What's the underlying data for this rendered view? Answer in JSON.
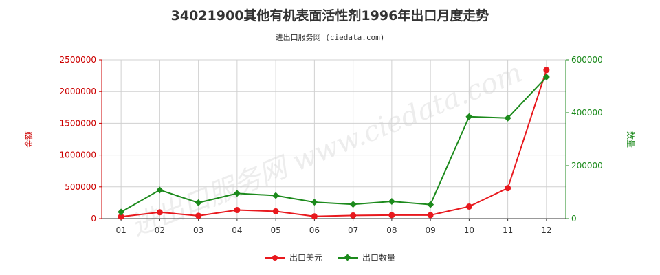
{
  "title": "34021900其他有机表面活性剂1996年出口月度走势",
  "subtitle": "进出口服务网 (ciedata.com)",
  "watermark": "进出口服务网 www.ciedata.com",
  "chart_data": {
    "type": "line",
    "categories": [
      "01",
      "02",
      "03",
      "04",
      "05",
      "06",
      "07",
      "08",
      "09",
      "10",
      "11",
      "12"
    ],
    "series": [
      {
        "name": "出口美元",
        "axis": "left",
        "color": "#e8191e",
        "marker": "circle",
        "values": [
          30000,
          100000,
          45000,
          135000,
          115000,
          35000,
          50000,
          55000,
          55000,
          190000,
          480000,
          2340000
        ]
      },
      {
        "name": "出口数量",
        "axis": "right",
        "color": "#1c8a1c",
        "marker": "diamond",
        "values": [
          25000,
          108000,
          60000,
          95000,
          87000,
          62000,
          54000,
          65000,
          53000,
          385000,
          380000,
          535000
        ]
      }
    ],
    "ylabel_left": "金额",
    "ylabel_right": "数量",
    "ylim_left": [
      0,
      2500000
    ],
    "yticks_left": [
      0,
      500000,
      1000000,
      1500000,
      2000000,
      2500000
    ],
    "ytick_labels_left": [
      "0",
      "500000",
      "1000000",
      "1500000",
      "2000000",
      "2500000"
    ],
    "ylim_right": [
      0,
      600000
    ],
    "yticks_right": [
      0,
      200000,
      400000,
      600000
    ],
    "ytick_labels_right": [
      "0",
      "200000",
      "400000",
      "600000"
    ],
    "grid": true,
    "legend_position": "bottom-center"
  }
}
